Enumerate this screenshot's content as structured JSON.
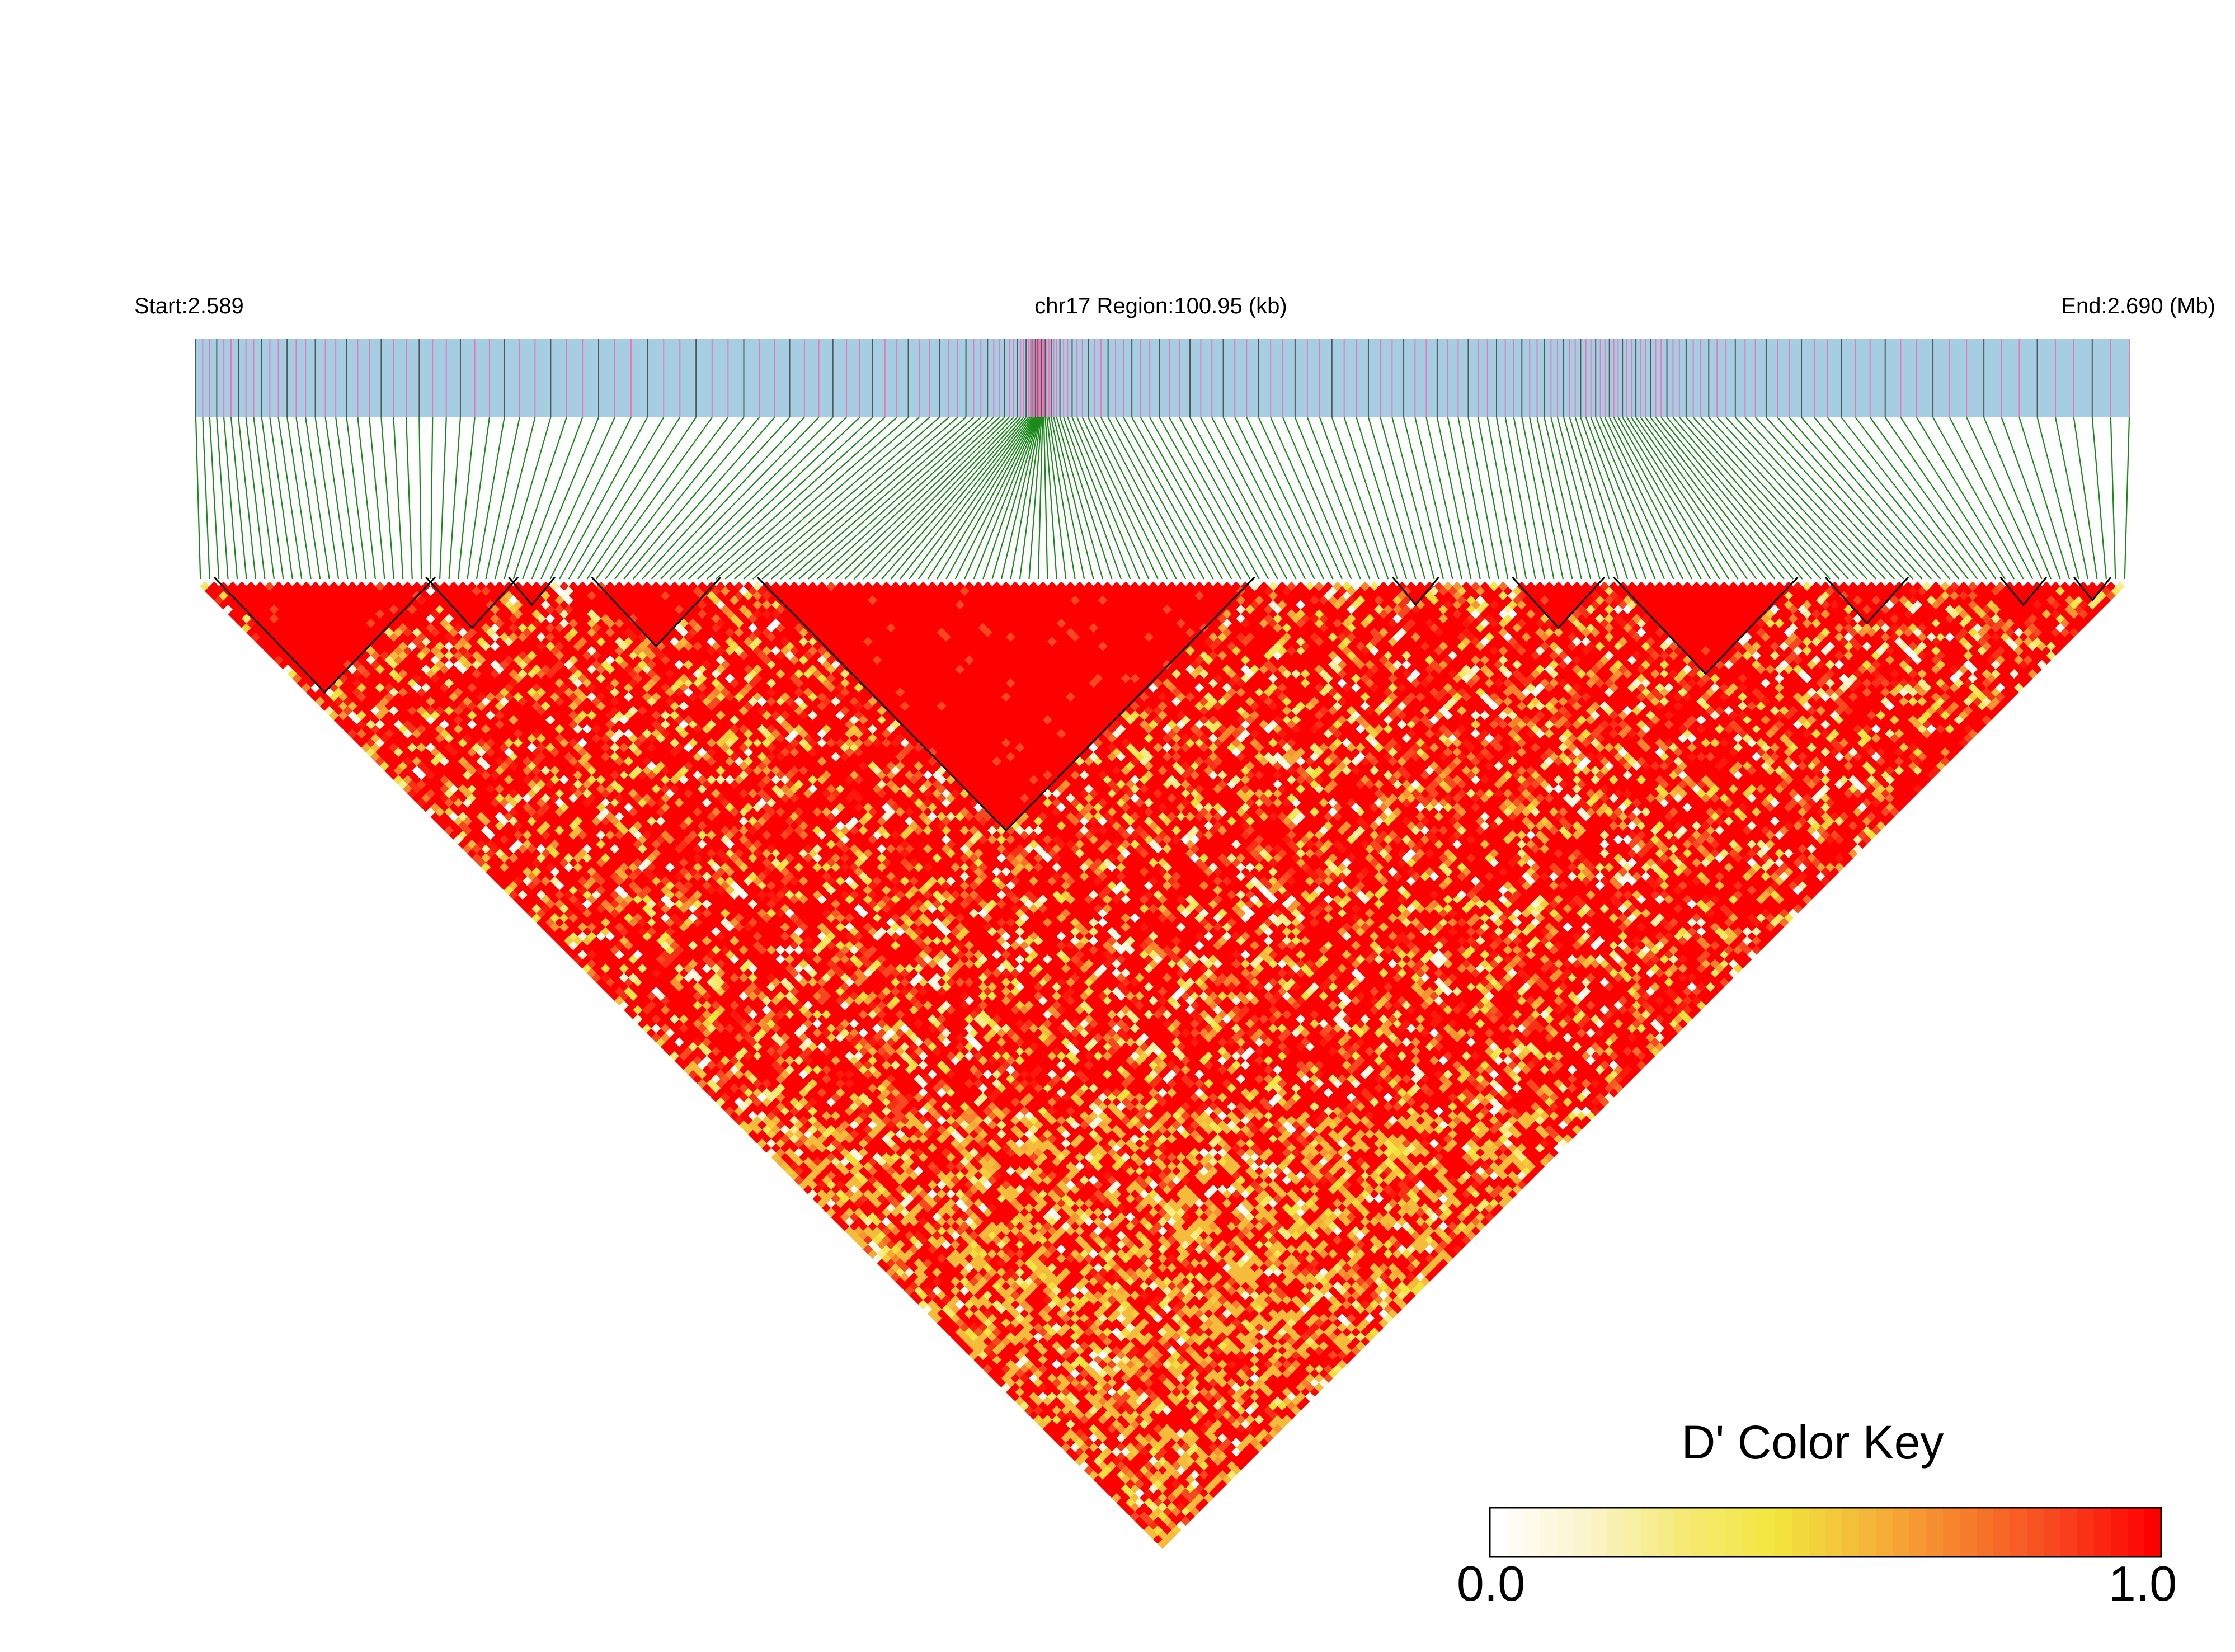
{
  "header": {
    "start_label": "Start:2.589",
    "region_label": "chr17 Region:100.95 (kb)",
    "end_label": "End:2.690 (Mb)"
  },
  "colors": {
    "track_background": "#a6cee3",
    "track_marks_pink": "#e879b8",
    "track_marks_dark": "#555555",
    "connector_lines": "#1a8a1a",
    "block_outline": "#000000",
    "ld_high": "#ff0000",
    "ld_mid": "#f5e642",
    "ld_low": "#ffffff"
  },
  "color_key": {
    "title": "D' Color Key",
    "min_label": "0.0",
    "max_label": "1.0",
    "stops": [
      "#ffffff",
      "#fbf4c8",
      "#f5ea74",
      "#f2e63c",
      "#f5b43a",
      "#f77d2c",
      "#f7451f",
      "#ff0000"
    ]
  },
  "chart_data": {
    "type": "heatmap",
    "title": "",
    "chromosome": "chr17",
    "region_start_mb": 2.589,
    "region_end_mb": 2.69,
    "region_span_kb": 100.95,
    "snp_count": 210,
    "value_label": "D'",
    "value_range": [
      0.0,
      1.0
    ],
    "ld_blocks": [
      {
        "from_snp": 2,
        "to_snp": 25
      },
      {
        "from_snp": 25,
        "to_snp": 34
      },
      {
        "from_snp": 34,
        "to_snp": 38
      },
      {
        "from_snp": 43,
        "to_snp": 56
      },
      {
        "from_snp": 61,
        "to_snp": 114
      },
      {
        "from_snp": 130,
        "to_snp": 134
      },
      {
        "from_snp": 143,
        "to_snp": 152
      },
      {
        "from_snp": 154,
        "to_snp": 173
      },
      {
        "from_snp": 177,
        "to_snp": 185
      },
      {
        "from_snp": 196,
        "to_snp": 200
      },
      {
        "from_snp": 204,
        "to_snp": 207
      }
    ]
  }
}
